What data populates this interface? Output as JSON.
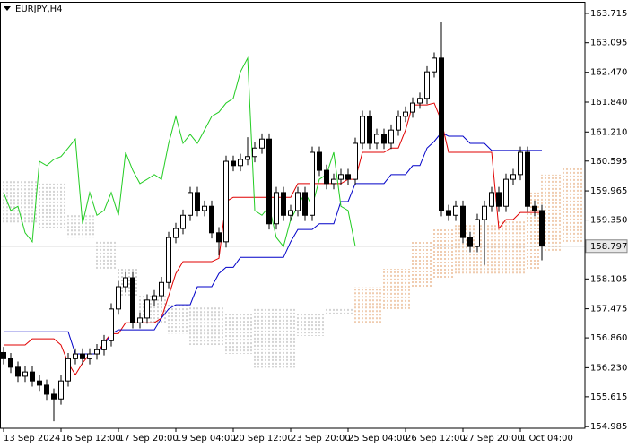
{
  "symbol": "EURJPY,H4",
  "chart_data": {
    "type": "candlestick",
    "categories": [
      "13 Sep 2024",
      null,
      null,
      null,
      null,
      null,
      null,
      null,
      "16 Sep 12:00",
      null,
      null,
      null,
      null,
      null,
      null,
      null,
      "17 Sep 20:00",
      null,
      null,
      null,
      null,
      null,
      null,
      null,
      "19 Sep 04:00",
      null,
      null,
      null,
      null,
      null,
      null,
      null,
      "20 Sep 12:00",
      null,
      null,
      null,
      null,
      null,
      null,
      null,
      "23 Sep 20:00",
      null,
      null,
      null,
      null,
      null,
      null,
      null,
      "25 Sep 04:00",
      null,
      null,
      null,
      null,
      null,
      null,
      null,
      "26 Sep 12:00",
      null,
      null,
      null,
      null,
      null,
      null,
      null,
      "27 Sep 20:00",
      null,
      null,
      null,
      null,
      null,
      null,
      null,
      "1 Oct 04:00",
      null,
      null,
      null,
      null,
      null,
      null,
      null,
      null
    ],
    "open": [
      156.55,
      156.42,
      156.24,
      156.05,
      156.14,
      155.95,
      155.86,
      155.67,
      155.57,
      155.95,
      156.42,
      156.52,
      156.42,
      156.52,
      156.61,
      156.8,
      157.47,
      157.94,
      158.13,
      157.18,
      157.28,
      157.66,
      157.75,
      158.03,
      158.98,
      159.17,
      159.45,
      159.93,
      159.55,
      159.64,
      159.08,
      158.89,
      160.59,
      160.5,
      160.63,
      160.69,
      160.87,
      161.06,
      159.27,
      159.93,
      159.45,
      159.55,
      159.93,
      159.45,
      160.78,
      160.4,
      160.12,
      160.21,
      160.31,
      160.21,
      160.97,
      161.54,
      160.97,
      161.16,
      160.97,
      161.25,
      161.54,
      161.63,
      161.82,
      161.92,
      162.48,
      162.77,
      159.55,
      159.45,
      159.64,
      158.98,
      158.79,
      159.36,
      159.64,
      159.93,
      159.64,
      160.21,
      160.31,
      160.78,
      159.64,
      159.55,
      null,
      null,
      null,
      null,
      null
    ],
    "high": [
      156.67,
      156.54,
      156.36,
      156.26,
      156.26,
      156.07,
      155.98,
      155.79,
      156.07,
      156.54,
      156.64,
      156.64,
      156.64,
      156.73,
      156.92,
      157.59,
      158.06,
      158.25,
      158.25,
      157.4,
      157.78,
      157.87,
      158.15,
      159.1,
      159.29,
      159.57,
      160.05,
      160.05,
      159.76,
      159.76,
      159.2,
      160.71,
      160.71,
      160.75,
      161.1,
      160.99,
      161.18,
      161.18,
      160.05,
      160.05,
      159.67,
      160.05,
      160.05,
      160.9,
      160.9,
      160.52,
      160.33,
      160.43,
      160.43,
      161.09,
      161.66,
      161.66,
      161.28,
      161.28,
      161.37,
      161.66,
      161.75,
      161.94,
      162.04,
      162.6,
      162.89,
      163.54,
      159.67,
      159.76,
      159.76,
      159.1,
      159.48,
      159.76,
      160.05,
      160.05,
      160.33,
      160.43,
      160.9,
      160.9,
      159.76,
      159.67,
      null,
      null,
      null,
      null,
      null
    ],
    "low": [
      156.3,
      156.12,
      155.93,
      155.93,
      155.83,
      155.74,
      155.55,
      155.1,
      155.45,
      155.83,
      156.3,
      156.3,
      156.3,
      156.4,
      156.49,
      156.68,
      157.35,
      157.82,
      157.06,
      157.06,
      157.16,
      157.54,
      157.63,
      157.91,
      158.86,
      159.05,
      159.33,
      159.43,
      159.43,
      158.96,
      158.6,
      158.77,
      160.38,
      160.38,
      160.51,
      160.57,
      160.75,
      159.15,
      159.15,
      159.33,
      159.33,
      159.43,
      159.33,
      159.33,
      160.28,
      160.0,
      160.0,
      160.09,
      160.09,
      160.09,
      160.85,
      160.85,
      160.85,
      160.85,
      160.85,
      161.13,
      161.42,
      161.51,
      161.7,
      161.8,
      162.36,
      159.43,
      159.33,
      159.33,
      158.86,
      158.67,
      158.67,
      158.4,
      159.52,
      159.52,
      159.52,
      160.09,
      160.19,
      159.52,
      159.43,
      158.5,
      null,
      null,
      null,
      null,
      null
    ],
    "close": [
      156.42,
      156.24,
      156.05,
      156.14,
      155.95,
      155.86,
      155.67,
      155.57,
      155.95,
      156.42,
      156.52,
      156.42,
      156.52,
      156.61,
      156.8,
      157.47,
      157.94,
      158.13,
      157.18,
      157.28,
      157.66,
      157.75,
      158.03,
      158.98,
      159.17,
      159.45,
      159.93,
      159.55,
      159.64,
      159.08,
      158.89,
      160.59,
      160.5,
      160.63,
      160.69,
      160.87,
      161.06,
      159.27,
      159.93,
      159.45,
      159.55,
      159.93,
      159.45,
      160.78,
      160.4,
      160.12,
      160.21,
      160.31,
      160.21,
      160.97,
      161.54,
      160.97,
      161.16,
      160.97,
      161.25,
      161.54,
      161.63,
      161.82,
      161.92,
      162.48,
      162.77,
      159.55,
      159.45,
      159.64,
      158.98,
      158.79,
      159.36,
      159.64,
      159.93,
      159.64,
      160.21,
      160.31,
      160.78,
      159.64,
      159.55,
      158.8,
      null,
      null,
      null,
      null,
      null
    ],
    "up_color": "#ffffff",
    "down_color": "#000000",
    "lines": [
      {
        "color": "#e00000",
        "values": [
          156.71,
          156.71,
          156.71,
          156.71,
          156.84,
          156.84,
          156.84,
          156.84,
          156.71,
          156.33,
          156.08,
          156.33,
          156.52,
          156.52,
          156.77,
          156.95,
          156.95,
          157.18,
          157.18,
          157.18,
          157.18,
          157.18,
          157.28,
          157.75,
          158.22,
          158.47,
          158.47,
          158.47,
          158.47,
          158.47,
          158.54,
          159.74,
          159.83,
          159.83,
          159.83,
          159.83,
          159.83,
          159.83,
          159.83,
          159.83,
          159.83,
          160.12,
          160.12,
          160.12,
          160.12,
          160.12,
          160.12,
          160.12,
          160.21,
          160.21,
          160.78,
          160.78,
          160.78,
          160.78,
          160.87,
          160.87,
          161.25,
          161.78,
          161.78,
          161.78,
          161.82,
          161.44,
          160.78,
          160.78,
          160.78,
          160.78,
          160.78,
          160.78,
          160.78,
          159.17,
          159.36,
          159.36,
          159.51,
          159.51,
          159.51,
          159.51,
          null,
          null,
          null,
          null,
          null
        ]
      },
      {
        "color": "#0000c8",
        "values": [
          156.99,
          156.99,
          156.99,
          156.99,
          156.99,
          156.99,
          156.99,
          156.99,
          156.99,
          156.99,
          156.52,
          156.52,
          156.52,
          156.52,
          156.71,
          156.95,
          157.03,
          157.03,
          157.03,
          157.03,
          157.03,
          157.03,
          157.28,
          157.47,
          157.56,
          157.56,
          157.56,
          157.94,
          157.94,
          157.94,
          158.22,
          158.35,
          158.35,
          158.56,
          158.56,
          158.56,
          158.56,
          158.56,
          158.56,
          158.56,
          158.89,
          159.15,
          159.15,
          159.15,
          159.27,
          159.27,
          159.27,
          159.74,
          159.74,
          160.12,
          160.12,
          160.12,
          160.12,
          160.12,
          160.31,
          160.31,
          160.31,
          160.5,
          160.5,
          160.87,
          161.01,
          161.2,
          161.12,
          161.12,
          161.12,
          160.97,
          160.97,
          160.97,
          160.82,
          160.82,
          160.82,
          160.82,
          160.82,
          160.82,
          160.82,
          160.82,
          null,
          null,
          null,
          null,
          null
        ]
      },
      {
        "color": "#22cc22",
        "values": [
          159.93,
          159.55,
          159.64,
          159.08,
          158.89,
          160.59,
          160.5,
          160.63,
          160.69,
          160.87,
          161.06,
          159.27,
          159.93,
          159.45,
          159.55,
          159.93,
          159.45,
          160.78,
          160.4,
          160.12,
          160.21,
          160.31,
          160.21,
          160.97,
          161.54,
          160.97,
          161.16,
          160.97,
          161.25,
          161.54,
          161.63,
          161.82,
          161.92,
          162.48,
          162.77,
          159.55,
          159.45,
          159.64,
          158.98,
          158.79,
          159.36,
          159.64,
          159.93,
          159.64,
          160.21,
          160.31,
          160.78,
          159.64,
          159.55,
          158.8,
          null,
          null,
          null,
          null,
          null,
          null,
          null,
          null,
          null,
          null,
          null,
          null,
          null,
          null,
          null,
          null,
          null,
          null,
          null,
          null,
          null,
          null,
          null,
          null,
          null,
          null,
          null,
          null,
          null,
          null,
          null
        ]
      }
    ],
    "cloud": {
      "up_color": "#a8a8a8",
      "down_color": "#e09a60",
      "span_a": [
        160.17,
        160.17,
        160.17,
        160.17,
        160.17,
        160.12,
        160.12,
        160.12,
        160.12,
        159.45,
        159.45,
        159.45,
        159.45,
        158.89,
        158.89,
        158.89,
        158.32,
        158.32,
        158.32,
        157.75,
        157.75,
        157.75,
        157.75,
        157.56,
        157.56,
        157.56,
        157.5,
        157.5,
        157.5,
        157.5,
        157.5,
        157.37,
        157.37,
        157.37,
        157.37,
        157.47,
        157.47,
        157.47,
        157.47,
        157.47,
        157.47,
        157.37,
        157.37,
        157.37,
        157.37,
        157.47,
        157.47,
        157.47,
        157.47,
        157.18,
        157.18,
        157.18,
        157.18,
        157.47,
        157.47,
        157.47,
        157.47,
        157.94,
        157.94,
        157.94,
        158.13,
        158.13,
        158.13,
        158.22,
        158.22,
        158.22,
        158.22,
        158.22,
        158.22,
        158.22,
        158.22,
        158.22,
        158.22,
        158.32,
        158.32,
        158.7,
        158.7,
        158.7,
        158.89,
        158.89,
        158.89
      ],
      "span_b": [
        159.27,
        159.27,
        159.27,
        159.27,
        159.27,
        159.17,
        159.17,
        159.17,
        159.17,
        158.98,
        158.98,
        158.98,
        158.98,
        158.32,
        158.32,
        158.32,
        157.75,
        157.75,
        157.75,
        157.18,
        157.18,
        157.18,
        157.18,
        156.95,
        156.95,
        156.95,
        156.71,
        156.71,
        156.71,
        156.71,
        156.71,
        156.52,
        156.52,
        156.52,
        156.52,
        156.23,
        156.23,
        156.23,
        156.23,
        156.23,
        156.23,
        156.9,
        156.9,
        156.9,
        156.9,
        157.37,
        157.37,
        157.37,
        157.37,
        157.94,
        157.94,
        157.94,
        157.94,
        158.32,
        158.32,
        158.32,
        158.32,
        158.89,
        158.89,
        158.89,
        159.17,
        159.17,
        159.17,
        159.27,
        159.27,
        159.27,
        159.27,
        159.27,
        159.27,
        159.36,
        159.36,
        159.36,
        159.36,
        159.93,
        159.93,
        160.31,
        160.31,
        160.31,
        160.44,
        160.44,
        160.44
      ]
    },
    "current_price": 158.797,
    "ylim": [
      154.95,
      163.96
    ],
    "yticks": [
      163.715,
      163.095,
      {
        "value": 162.47,
        "label": "162.470"
      },
      {
        "value": 161.84,
        "label": "161.840"
      },
      {
        "value": 161.21,
        "label": "161.210"
      },
      160.595,
      159.965,
      {
        "value": 159.35,
        "label": "159.350"
      },
      158.105,
      157.475,
      {
        "value": 156.86,
        "label": "156.860"
      },
      {
        "value": 156.23,
        "label": "156.230"
      },
      155.615,
      154.985
    ]
  }
}
